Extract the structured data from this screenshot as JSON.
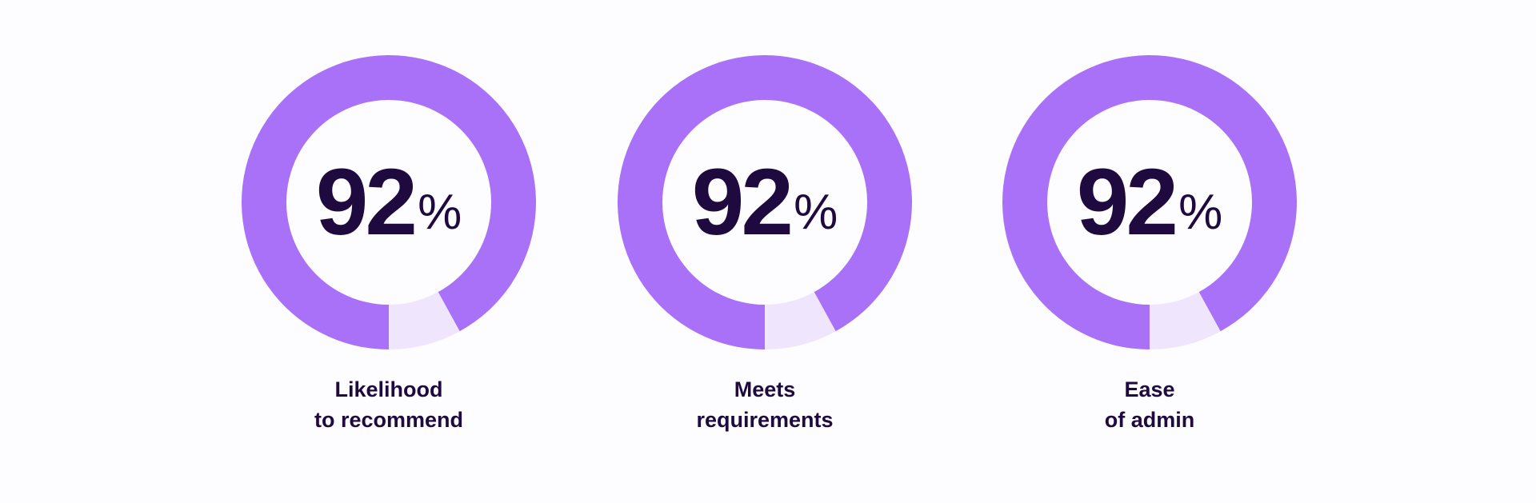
{
  "chart_data": [
    {
      "type": "pie",
      "variant": "donut",
      "value_label": "92",
      "unit": "%",
      "values": [
        92,
        8
      ],
      "label_lines": [
        "Likelihood",
        "to recommend"
      ]
    },
    {
      "type": "pie",
      "variant": "donut",
      "value_label": "92",
      "unit": "%",
      "values": [
        92,
        8
      ],
      "label_lines": [
        "Meets",
        "requirements"
      ]
    },
    {
      "type": "pie",
      "variant": "donut",
      "value_label": "92",
      "unit": "%",
      "values": [
        92,
        8
      ],
      "label_lines": [
        "Ease",
        "of admin"
      ]
    }
  ],
  "colors": {
    "filled": "#a970f8",
    "remainder": "#efe6fd",
    "text": "#1f0a40",
    "background": "#fdfcfe"
  }
}
